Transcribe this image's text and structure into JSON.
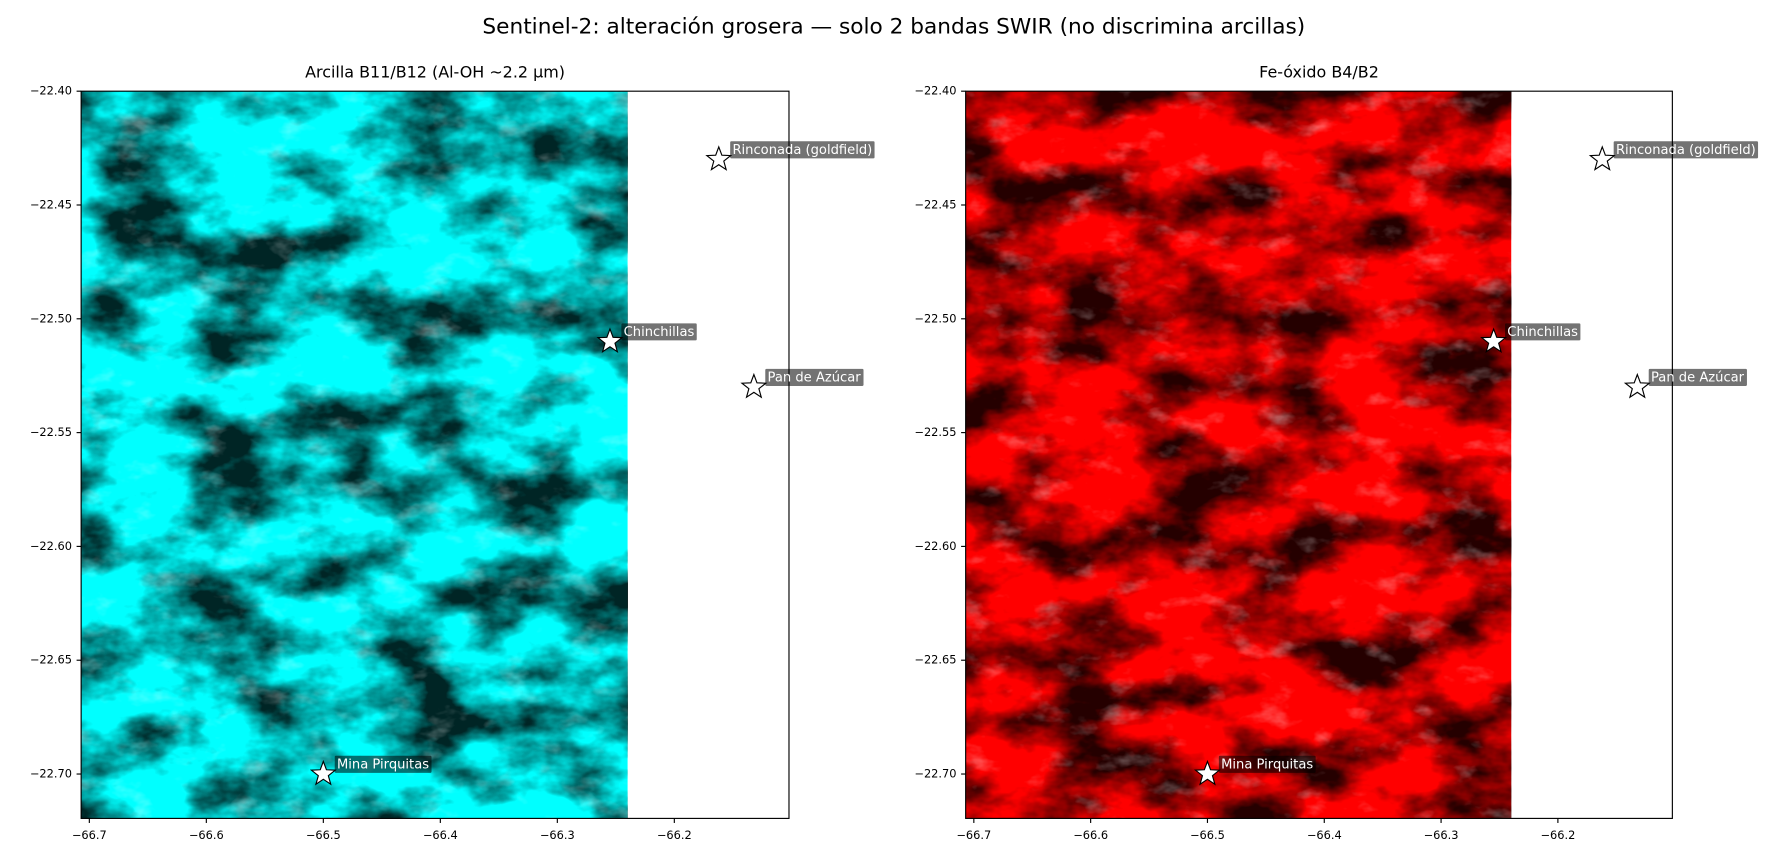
{
  "title": "Sentinel-2: alteración grosera — solo 2 bandas SWIR (no discrimina arcillas)",
  "chart_data": [
    {
      "type": "scatter",
      "title": "Arcilla  B11/B12  (Al-OH ~2.2 µm)",
      "image_color": "#00ffff",
      "color": "#ffffff",
      "labels": [
        "Rinconada (goldfield)",
        "Chinchillas",
        "Pan de Azúcar",
        "Mina Pirquitas"
      ],
      "x": [
        -66.162,
        -66.255,
        -66.132,
        -66.5
      ],
      "values": [
        -22.43,
        -22.51,
        -22.53,
        -22.7
      ],
      "xlim": [
        -66.707,
        -66.102
      ],
      "ylim": [
        -22.7195,
        -22.4
      ],
      "xticks": [
        {
          "value": -66.7,
          "label": "−66.7"
        },
        {
          "value": -66.6,
          "label": "−66.6"
        },
        {
          "value": -66.5,
          "label": "−66.5"
        },
        {
          "value": -66.4,
          "label": "−66.4"
        },
        {
          "value": -66.3,
          "label": "−66.3"
        },
        {
          "value": -66.2,
          "label": "−66.2"
        }
      ],
      "yticks": [
        {
          "value": -22.4,
          "label": "−22.40"
        },
        {
          "value": -22.45,
          "label": "−22.45"
        },
        {
          "value": -22.5,
          "label": "−22.50"
        },
        {
          "value": -22.55,
          "label": "−22.55"
        },
        {
          "value": -22.6,
          "label": "−22.60"
        },
        {
          "value": -22.65,
          "label": "−22.65"
        },
        {
          "value": -22.7,
          "label": "−22.70"
        }
      ]
    },
    {
      "type": "scatter",
      "title": "Fe-óxido  B4/B2",
      "image_color": "#ff0000",
      "color": "#ffffff",
      "labels": [
        "Rinconada (goldfield)",
        "Chinchillas",
        "Pan de Azúcar",
        "Mina Pirquitas"
      ],
      "x": [
        -66.162,
        -66.255,
        -66.132,
        -66.5
      ],
      "values": [
        -22.43,
        -22.51,
        -22.53,
        -22.7
      ],
      "xlim": [
        -66.707,
        -66.102
      ],
      "ylim": [
        -22.7195,
        -22.4
      ],
      "xticks": [
        {
          "value": -66.7,
          "label": "−66.7"
        },
        {
          "value": -66.6,
          "label": "−66.6"
        },
        {
          "value": -66.5,
          "label": "−66.5"
        },
        {
          "value": -66.4,
          "label": "−66.4"
        },
        {
          "value": -66.3,
          "label": "−66.3"
        },
        {
          "value": -66.2,
          "label": "−66.2"
        }
      ],
      "yticks": [
        {
          "value": -22.4,
          "label": "−22.40"
        },
        {
          "value": -22.45,
          "label": "−22.45"
        },
        {
          "value": -22.5,
          "label": "−22.50"
        },
        {
          "value": -22.55,
          "label": "−22.55"
        },
        {
          "value": -22.6,
          "label": "−22.60"
        },
        {
          "value": -22.65,
          "label": "−22.65"
        },
        {
          "value": -22.7,
          "label": "−22.70"
        }
      ]
    }
  ]
}
